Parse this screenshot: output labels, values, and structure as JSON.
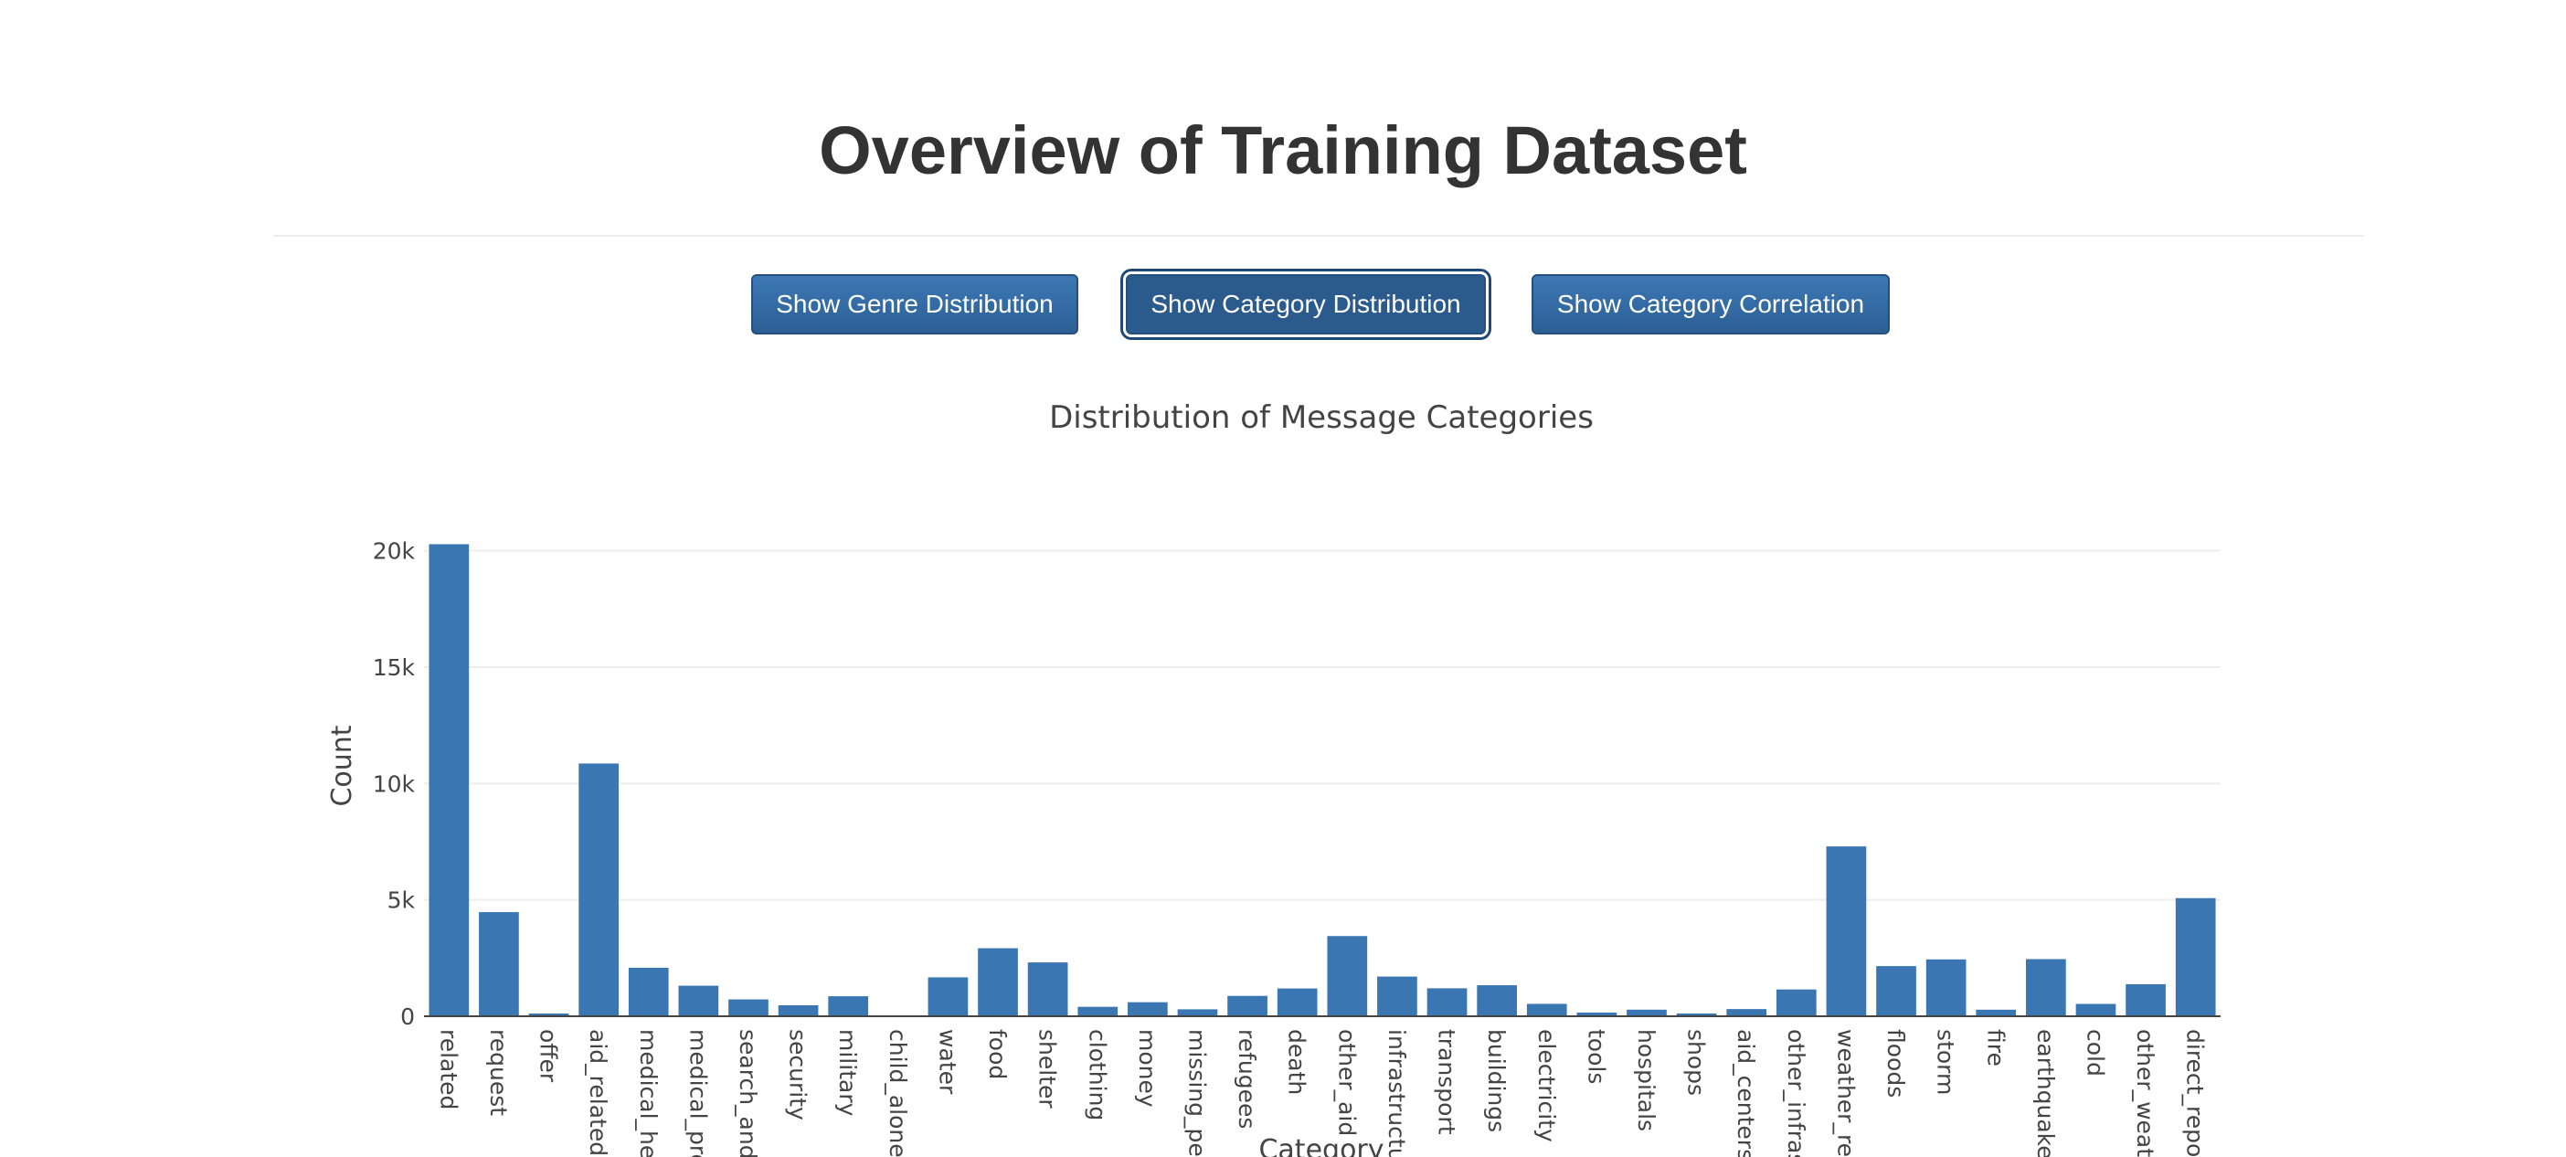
{
  "header": {
    "title": "Overview of Training Dataset"
  },
  "buttons": {
    "genre": "Show Genre Distribution",
    "category": "Show Category Distribution",
    "correlation": "Show Category Correlation"
  },
  "colors": {
    "bar": "#3a76b2",
    "grid": "#eeeeee",
    "axis": "#444444",
    "button": "#337ab7"
  },
  "chart_data": {
    "type": "bar",
    "title": "Distribution of Message Categories",
    "xlabel": "Category",
    "ylabel": "Count",
    "ylim": [
      0,
      20300
    ],
    "yticks": [
      0,
      5000,
      10000,
      15000,
      20000
    ],
    "ytick_labels": [
      "0",
      "5k",
      "10k",
      "15k",
      "20k"
    ],
    "grid": true,
    "categories": [
      "related",
      "request",
      "offer",
      "aid_related",
      "medical_hel",
      "medical_pro",
      "search_and_",
      "security",
      "military",
      "child_alone",
      "water",
      "food",
      "shelter",
      "clothing",
      "money",
      "missing_peo",
      "refugees",
      "death",
      "other_aid",
      "infrastructur",
      "transport",
      "buildings",
      "electricity",
      "tools",
      "hospitals",
      "shops",
      "aid_centers",
      "other_infras",
      "weather_rel",
      "floods",
      "storm",
      "fire",
      "earthquake",
      "cold",
      "other_weath",
      "direct_repor"
    ],
    "values": [
      20282,
      4474,
      118,
      10860,
      2084,
      1313,
      724,
      471,
      860,
      0,
      1672,
      2923,
      2314,
      405,
      604,
      298,
      875,
      1194,
      3446,
      1705,
      1201,
      1333,
      532,
      159,
      283,
      120,
      309,
      1151,
      7297,
      2155,
      2443,
      282,
      2455,
      530,
      1376,
      5075
    ]
  }
}
